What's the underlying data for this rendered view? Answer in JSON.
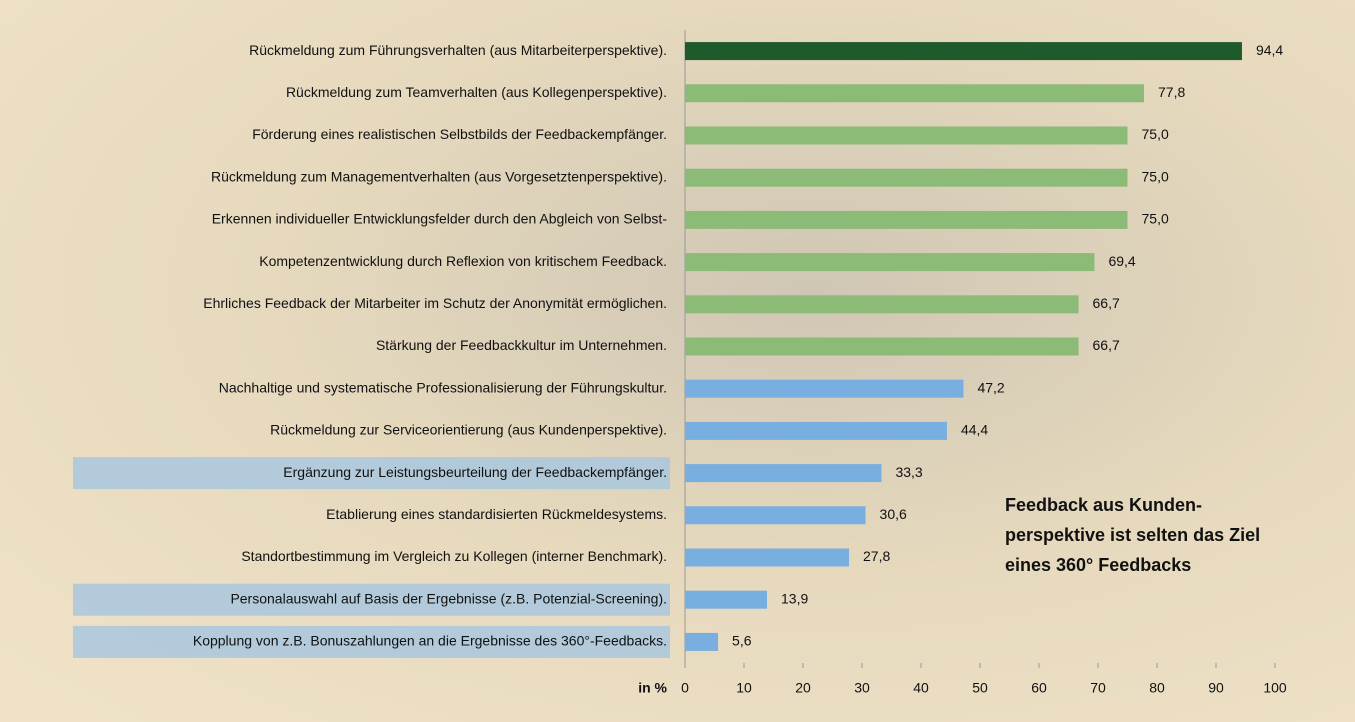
{
  "chart_data": {
    "type": "barh",
    "categories": [
      "Rückmeldung zum Führungsverhalten (aus Mitarbeiterperspektive).",
      "Rückmeldung zum Teamverhalten (aus Kollegenperspektive).",
      "Förderung eines realistischen Selbstbilds der Feedbackempfänger.",
      "Rückmeldung zum Managementverhalten (aus Vorgesetztenperspektive).",
      "Erkennen individueller Entwicklungsfelder durch den Abgleich von Selbst-",
      "Kompetenzentwicklung durch Reflexion von kritischem Feedback.",
      "Ehrliches Feedback der Mitarbeiter im Schutz der Anonymität ermöglichen.",
      "Stärkung der Feedbackkultur im Unternehmen.",
      "Nachhaltige und systematische Professionalisierung der Führungskultur.",
      "Rückmeldung zur Serviceorientierung (aus Kundenperspektive).",
      "Ergänzung zur Leistungsbeurteilung der Feedbackempfänger.",
      "Etablierung eines standardisierten Rückmeldesystems.",
      "Standortbestimmung im Vergleich zu Kollegen (interner Benchmark).",
      "Personalauswahl auf Basis der Ergebnisse (z.B. Potenzial-Screening).",
      "Kopplung von z.B. Bonuszahlungen an die Ergebnisse des 360°-Feedbacks."
    ],
    "values": [
      94.4,
      77.8,
      75.0,
      75.0,
      75.0,
      69.4,
      66.7,
      66.7,
      47.2,
      44.4,
      33.3,
      30.6,
      27.8,
      13.9,
      5.6
    ],
    "value_labels": [
      "94,4",
      "77,8",
      "75,0",
      "75,0",
      "75,0",
      "69,4",
      "66,7",
      "66,7",
      "47,2",
      "44,4",
      "33,3",
      "30,6",
      "27,8",
      "13,9",
      "5,6"
    ],
    "colors": [
      "#1f5a2c",
      "#8cbb77",
      "#8cbb77",
      "#8cbb77",
      "#8cbb77",
      "#8cbb77",
      "#8cbb77",
      "#8cbb77",
      "#79aee0",
      "#79aee0",
      "#79aee0",
      "#79aee0",
      "#79aee0",
      "#79aee0",
      "#79aee0"
    ],
    "label_highlight": [
      false,
      false,
      false,
      false,
      false,
      false,
      false,
      false,
      false,
      false,
      true,
      false,
      false,
      true,
      true
    ],
    "xlabel": "in %",
    "xlim": [
      0,
      100
    ],
    "xticks": [
      0,
      10,
      20,
      30,
      40,
      50,
      60,
      70,
      80,
      90,
      100
    ],
    "annotation": [
      "Feedback aus Kunden-",
      "perspektive ist selten das Ziel",
      "eines 360° Feedbacks"
    ]
  }
}
